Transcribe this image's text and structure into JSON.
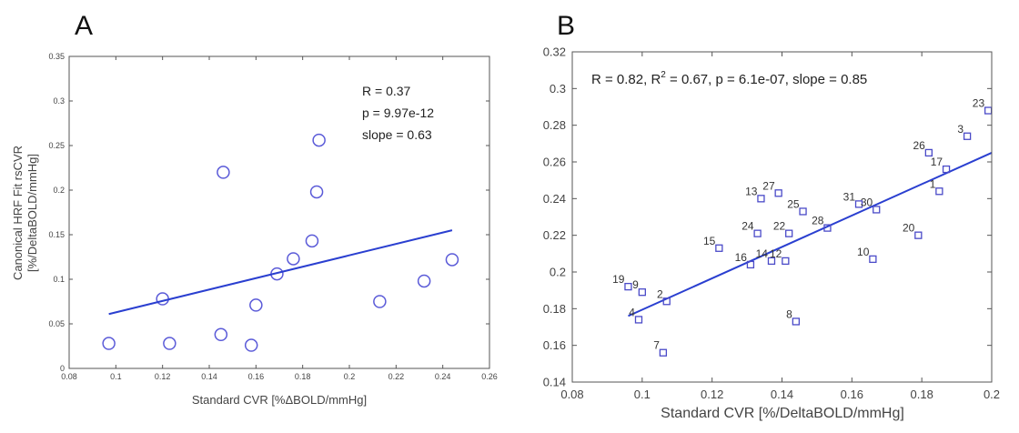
{
  "panels": [
    {
      "letter": "A",
      "fit_line": {
        "x_start": 0.097,
        "y_start": 0.061,
        "x_end": 0.244,
        "y_end": 0.155
      },
      "colors": {
        "marker": "#5a5ad8",
        "line": "#2a3fd0",
        "axis": "#555555"
      },
      "stats": [
        "R = 0.37",
        "p = 9.97e-12",
        "slope = 0.63"
      ],
      "xlabel": "Standard CVR [%ΔBOLD/mmHg]",
      "ylabel_lines": [
        "Canonical HRF Fit rsCVR",
        "[%/DeltaBOLD/mmHg]"
      ]
    },
    {
      "letter": "B",
      "fit_line": {
        "x_start": 0.096,
        "y_start": 0.176,
        "x_end": 0.2,
        "y_end": 0.265
      },
      "colors": {
        "marker": "#4a4ac8",
        "line": "#2a3fd0",
        "axis": "#555555"
      },
      "stats_text": "R = 0.82, R² = 0.67, p = 6.1e-07, slope = 0.85",
      "xlabel": "Standard CVR [%/DeltaBOLD/mmHg]"
    }
  ],
  "chart_data": [
    {
      "type": "scatter",
      "title": "A",
      "xlabel": "Standard CVR [%ΔBOLD/mmHg]",
      "ylabel": "Canonical HRF Fit rsCVR [%/DeltaBOLD/mmHg]",
      "xlim": [
        0.08,
        0.26
      ],
      "ylim": [
        0,
        0.35
      ],
      "xticks": [
        "0.08",
        "0.1",
        "0.12",
        "0.14",
        "0.16",
        "0.18",
        "0.2",
        "0.22",
        "0.24",
        "0.26"
      ],
      "yticks": [
        "0",
        "0.05",
        "0.1",
        "0.15",
        "0.2",
        "0.25",
        "0.3",
        "0.35"
      ],
      "x": [
        0.097,
        0.12,
        0.123,
        0.145,
        0.146,
        0.158,
        0.16,
        0.169,
        0.176,
        0.184,
        0.186,
        0.187,
        0.213,
        0.232,
        0.244
      ],
      "y": [
        0.028,
        0.078,
        0.028,
        0.038,
        0.22,
        0.026,
        0.071,
        0.106,
        0.123,
        0.143,
        0.198,
        0.256,
        0.075,
        0.098,
        0.122
      ],
      "fit": {
        "x": [
          0.097,
          0.244
        ],
        "y": [
          0.061,
          0.155
        ]
      }
    },
    {
      "type": "scatter",
      "title": "B",
      "xlabel": "Standard CVR [%/DeltaBOLD/mmHg]",
      "ylabel": "",
      "xlim": [
        0.08,
        0.2
      ],
      "ylim": [
        0.14,
        0.32
      ],
      "xticks": [
        "0.08",
        "0.1",
        "0.12",
        "0.14",
        "0.16",
        "0.18",
        "0.2"
      ],
      "yticks": [
        "0.14",
        "0.16",
        "0.18",
        "0.2",
        "0.22",
        "0.24",
        "0.26",
        "0.28",
        "0.3",
        "0.32"
      ],
      "labels": [
        "19",
        "9",
        "2",
        "4",
        "7",
        "15",
        "16",
        "14",
        "12",
        "8",
        "24",
        "22",
        "13",
        "27",
        "25",
        "28",
        "31",
        "30",
        "10",
        "20",
        "1",
        "17",
        "26",
        "3",
        "23"
      ],
      "x": [
        0.096,
        0.1,
        0.107,
        0.099,
        0.106,
        0.122,
        0.131,
        0.137,
        0.141,
        0.144,
        0.133,
        0.142,
        0.134,
        0.139,
        0.146,
        0.153,
        0.162,
        0.167,
        0.166,
        0.179,
        0.185,
        0.187,
        0.182,
        0.193,
        0.199
      ],
      "y": [
        0.192,
        0.189,
        0.184,
        0.174,
        0.156,
        0.213,
        0.204,
        0.206,
        0.206,
        0.173,
        0.221,
        0.221,
        0.24,
        0.243,
        0.233,
        0.224,
        0.237,
        0.234,
        0.207,
        0.22,
        0.244,
        0.256,
        0.265,
        0.274,
        0.288
      ],
      "fit": {
        "x": [
          0.096,
          0.2
        ],
        "y": [
          0.176,
          0.265
        ]
      },
      "annotation": "R = 0.82, R² = 0.67, p = 6.1e-07, slope = 0.85"
    }
  ]
}
